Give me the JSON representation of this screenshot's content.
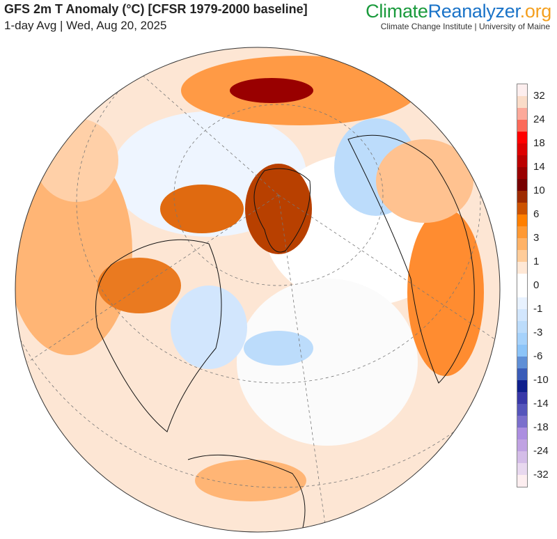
{
  "header": {
    "title": "GFS 2m T Anomaly (°C) [CFSR 1979-2000 baseline]",
    "subtitle": "1-day Avg | Wed, Aug 20, 2025"
  },
  "brand": {
    "part1": "Climate",
    "part2": "Reanalyzer",
    "part3": ".org",
    "institute": "Climate Change Institute | University of Maine"
  },
  "colorbar": {
    "labels": [
      "32",
      "24",
      "18",
      "14",
      "10",
      "6",
      "3",
      "1",
      "0",
      "-1",
      "-3",
      "-6",
      "-10",
      "-14",
      "-18",
      "-24",
      "-32"
    ],
    "colors": [
      "#fdeeee",
      "#fadcc8",
      "#fca99a",
      "#fb6a5a",
      "#ff0000",
      "#dd0000",
      "#bb0000",
      "#990000",
      "#770000",
      "#9e2a00",
      "#cc5200",
      "#ff7f00",
      "#ff9933",
      "#ffb266",
      "#ffcc99",
      "#ffe8d6",
      "#ffffff",
      "#ffffff",
      "#e8f2ff",
      "#d2e6fd",
      "#bcdcfb",
      "#a6d2fb",
      "#8cc4f8",
      "#5f8fd6",
      "#3a5cb8",
      "#0f1f8c",
      "#3838a8",
      "#5555bb",
      "#7b6fcc",
      "#ac8ee0",
      "#c0a2e2",
      "#d4bde8",
      "#e8d8ef",
      "#fdeef0"
    ]
  }
}
